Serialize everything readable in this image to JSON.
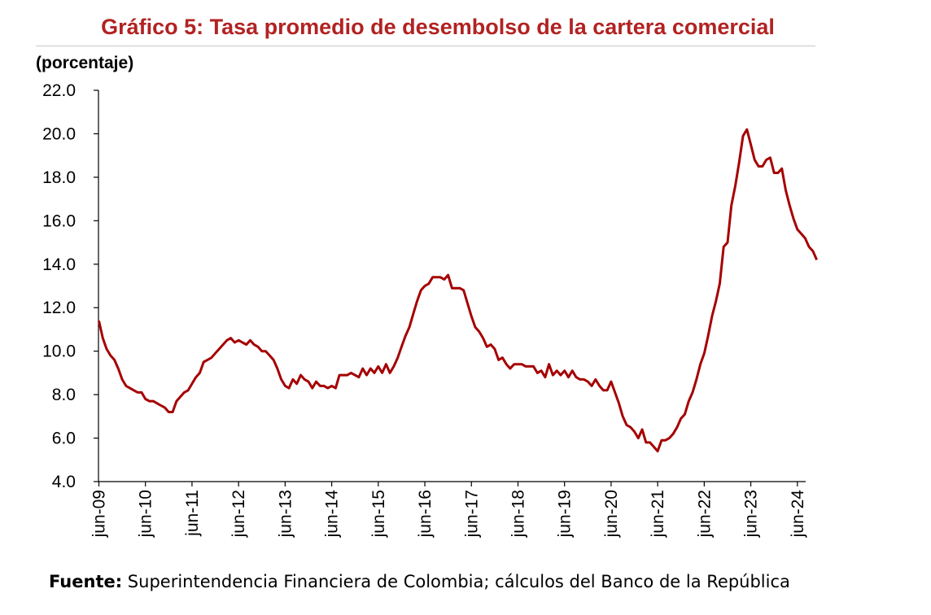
{
  "chart_data": {
    "type": "line",
    "title": "Gráfico 5: Tasa promedio de desembolso de la cartera comercial",
    "ylabel": "(porcentaje)",
    "xlabel": "",
    "ylim": [
      4.0,
      22.0
    ],
    "yticks": [
      "4.0",
      "6.0",
      "8.0",
      "10.0",
      "12.0",
      "14.0",
      "16.0",
      "18.0",
      "20.0",
      "22.0"
    ],
    "xticks": [
      "jun-09",
      "jun-10",
      "jun-11",
      "jun-12",
      "jun-13",
      "jun-14",
      "jun-15",
      "jun-16",
      "jun-17",
      "jun-18",
      "jun-19",
      "jun-20",
      "jun-21",
      "jun-22",
      "jun-23",
      "jun-24"
    ],
    "grid": false,
    "legend": "none",
    "series": [
      {
        "name": "Tasa promedio de desembolso de la cartera comercial",
        "color": "#a50000",
        "x_start": "jun-09",
        "frequency": "monthly",
        "values": [
          11.4,
          10.6,
          10.1,
          9.8,
          9.6,
          9.2,
          8.7,
          8.4,
          8.3,
          8.2,
          8.1,
          8.1,
          7.8,
          7.7,
          7.7,
          7.6,
          7.5,
          7.4,
          7.2,
          7.2,
          7.7,
          7.9,
          8.1,
          8.2,
          8.5,
          8.8,
          9.0,
          9.5,
          9.6,
          9.7,
          9.9,
          10.1,
          10.3,
          10.5,
          10.6,
          10.4,
          10.5,
          10.4,
          10.3,
          10.5,
          10.3,
          10.2,
          10.0,
          10.0,
          9.8,
          9.6,
          9.2,
          8.7,
          8.4,
          8.3,
          8.7,
          8.5,
          8.9,
          8.7,
          8.6,
          8.3,
          8.6,
          8.4,
          8.4,
          8.3,
          8.4,
          8.3,
          8.9,
          8.9,
          8.9,
          9.0,
          8.9,
          8.8,
          9.2,
          8.9,
          9.2,
          9.0,
          9.3,
          9.0,
          9.4,
          9.0,
          9.3,
          9.7,
          10.2,
          10.7,
          11.1,
          11.7,
          12.3,
          12.8,
          13.0,
          13.1,
          13.4,
          13.4,
          13.4,
          13.3,
          13.5,
          12.9,
          12.9,
          12.9,
          12.8,
          12.2,
          11.6,
          11.1,
          10.9,
          10.6,
          10.2,
          10.3,
          10.1,
          9.6,
          9.7,
          9.4,
          9.2,
          9.4,
          9.4,
          9.4,
          9.3,
          9.3,
          9.3,
          9.0,
          9.1,
          8.8,
          9.4,
          8.9,
          9.1,
          8.9,
          9.1,
          8.8,
          9.1,
          8.8,
          8.7,
          8.7,
          8.6,
          8.4,
          8.7,
          8.4,
          8.2,
          8.2,
          8.6,
          8.1,
          7.6,
          7.0,
          6.6,
          6.5,
          6.3,
          6.0,
          6.4,
          5.8,
          5.8,
          5.6,
          5.4,
          5.9,
          5.9,
          6.0,
          6.2,
          6.5,
          6.9,
          7.1,
          7.7,
          8.1,
          8.7,
          9.4,
          9.9,
          10.7,
          11.6,
          12.3,
          13.1,
          14.8,
          15.0,
          16.7,
          17.6,
          18.7,
          19.9,
          20.2,
          19.5,
          18.8,
          18.5,
          18.5,
          18.8,
          18.9,
          18.2,
          18.2,
          18.4,
          17.4,
          16.7,
          16.1,
          15.6,
          15.4,
          15.2,
          14.8,
          14.6,
          14.2
        ]
      }
    ]
  },
  "source": {
    "label": "Fuente:",
    "text": " Superintendencia Financiera de Colombia; cálculos del Banco de la República"
  }
}
